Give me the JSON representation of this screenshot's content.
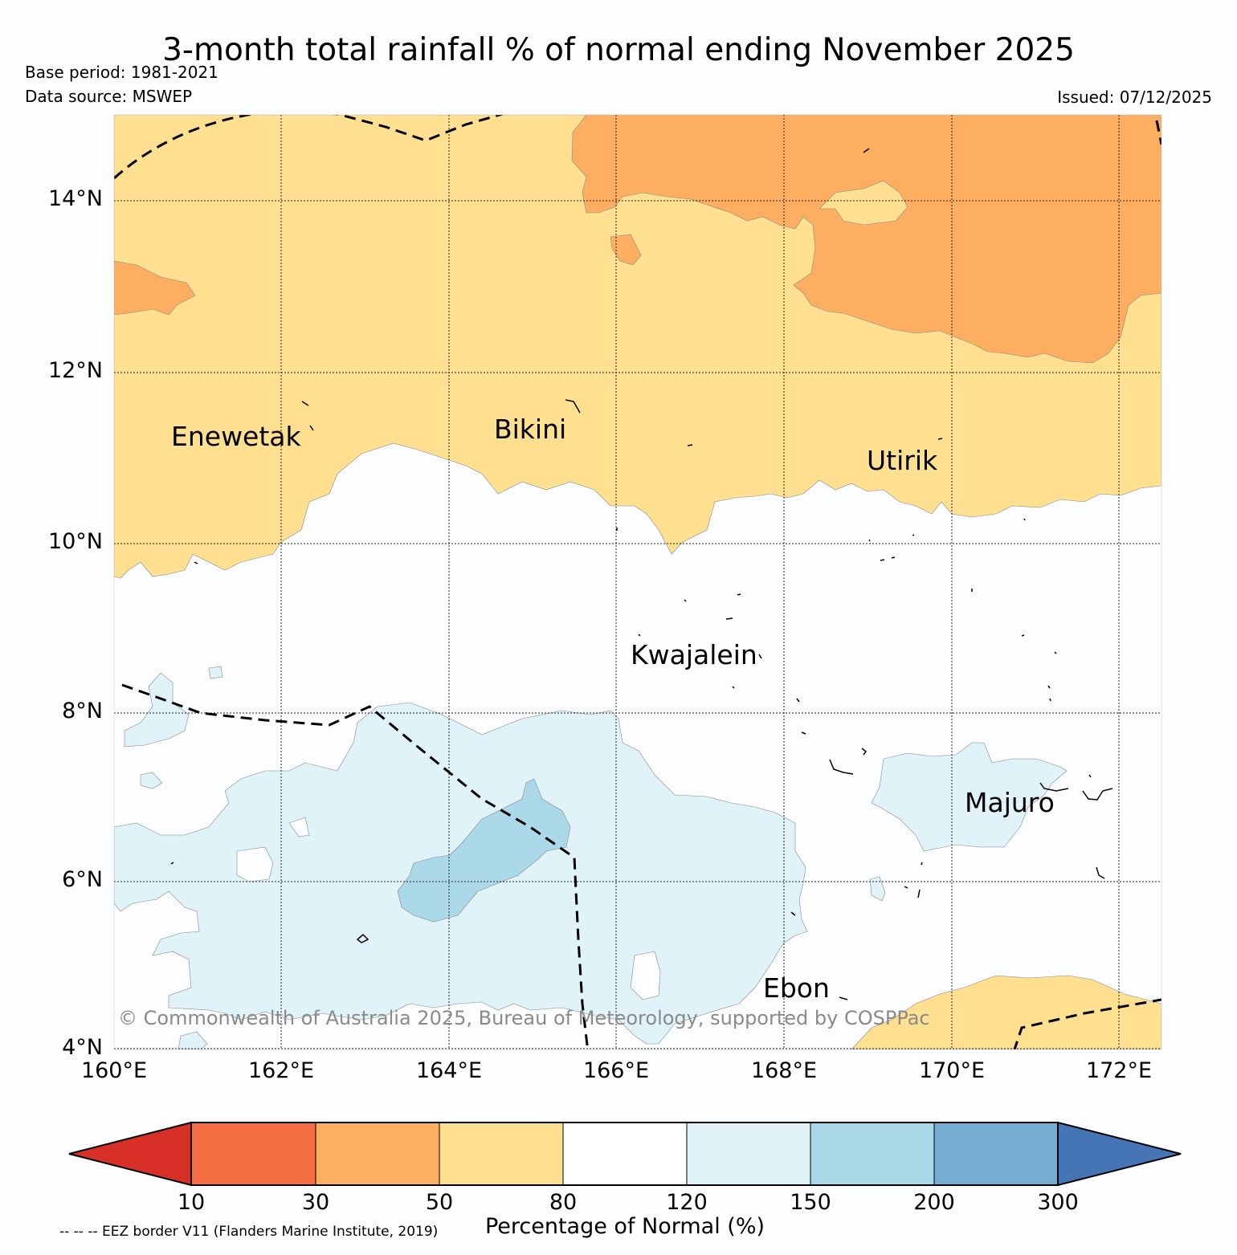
{
  "title": "3-month total rainfall % of normal ending November 2025",
  "base_period": "Base period: 1981-2021",
  "data_source": "Data source: MSWEP",
  "issued": "Issued: 07/12/2025",
  "lat_labels": [
    "14°N",
    "12°N",
    "10°N",
    "8°N",
    "6°N",
    "4°N"
  ],
  "lon_labels": [
    "160°E",
    "162°E",
    "164°E",
    "166°E",
    "168°E",
    "170°E",
    "172°E"
  ],
  "places": {
    "enewetak": "Enewetak",
    "bikini": "Bikini",
    "utirik": "Utirik",
    "kwajalein": "Kwajalein",
    "majuro": "Majuro",
    "ebon": "Ebon"
  },
  "copyright": "© Commonwealth of Australia 2025, Bureau of Meteorology, supported by COSPPac",
  "colorbar": {
    "ticks": [
      "10",
      "30",
      "50",
      "80",
      "120",
      "150",
      "200",
      "300"
    ],
    "label": "Percentage of Normal (%)",
    "colors": [
      "#d73027",
      "#f46d43",
      "#fdae61",
      "#fee090",
      "#ffffff",
      "#e0f3f8",
      "#abd9e9",
      "#74add1",
      "#4575b4"
    ]
  },
  "eez_note": "-- -- -- EEZ border V11 (Flanders Marine Institute, 2019)"
}
